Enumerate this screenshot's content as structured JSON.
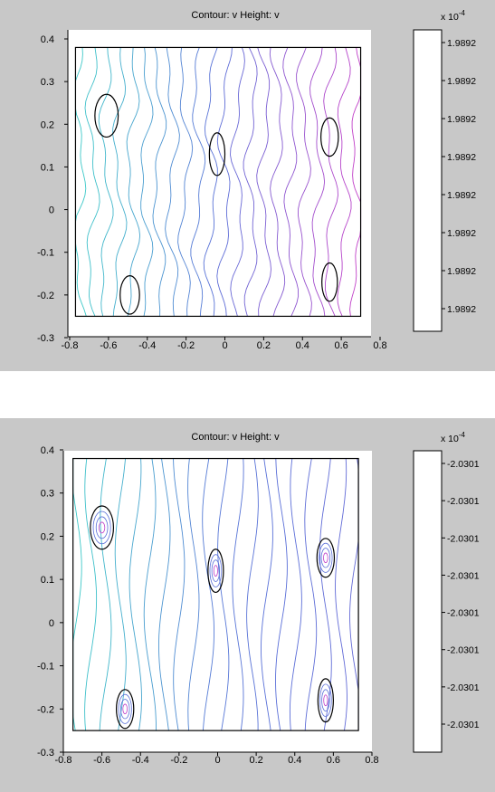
{
  "colors": {
    "figure_bg": "#c8c8c8",
    "axes_bg": "#ffffff",
    "axes_line": "#000000",
    "contour_cyan": "#3cc8c8",
    "contour_blue": "#5a6fd8",
    "contour_magenta": "#c040c8",
    "circle": "#000000"
  },
  "chart_data": [
    {
      "type": "contour",
      "title": "Contour: v  Height: v",
      "xlim": [
        -0.8,
        0.8
      ],
      "ylim": [
        -0.3,
        0.4
      ],
      "xticks": [
        "-0.8",
        "-0.6",
        "-0.4",
        "-0.2",
        "0",
        "0.2",
        "0.4",
        "0.6",
        "0.8"
      ],
      "yticks": [
        "0.4",
        "0.3",
        "0.2",
        "0.1",
        "0",
        "-0.1",
        "-0.2",
        "-0.3"
      ],
      "domain_rect": {
        "x": [
          -0.77,
          0.7
        ],
        "y": [
          -0.25,
          0.38
        ]
      },
      "circles": [
        {
          "cx": -0.61,
          "cy": 0.22,
          "rx": 0.06,
          "ry": 0.05
        },
        {
          "cx": -0.04,
          "cy": 0.13,
          "rx": 0.04,
          "ry": 0.05
        },
        {
          "cx": 0.54,
          "cy": 0.17,
          "rx": 0.045,
          "ry": 0.045
        },
        {
          "cx": -0.49,
          "cy": -0.2,
          "rx": 0.05,
          "ry": 0.045
        },
        {
          "cx": 0.54,
          "cy": -0.17,
          "rx": 0.04,
          "ry": 0.045
        }
      ],
      "colorbar": {
        "exponent": "x 10",
        "exponent_power": "-4",
        "ticks": [
          "1.9892",
          "1.9892",
          "1.9892",
          "1.9892",
          "1.9892",
          "1.9892",
          "1.9892",
          "1.9892"
        ]
      },
      "contour_style": "near-vertical wavy lines, cyan on the left shading to magenta on the right"
    },
    {
      "type": "contour",
      "title": "Contour: v  Height: v",
      "xlim": [
        -0.8,
        0.8
      ],
      "ylim": [
        -0.3,
        0.4
      ],
      "xticks": [
        "-0.8",
        "-0.6",
        "-0.4",
        "-0.2",
        "0",
        "0.2",
        "0.4",
        "0.6",
        "0.8"
      ],
      "yticks": [
        "0.4",
        "0.3",
        "0.2",
        "0.1",
        "0",
        "-0.1",
        "-0.2",
        "-0.3"
      ],
      "domain_rect": {
        "x": [
          -0.75,
          0.73
        ],
        "y": [
          -0.25,
          0.38
        ]
      },
      "circles": [
        {
          "cx": -0.6,
          "cy": 0.22,
          "rx": 0.06,
          "ry": 0.05
        },
        {
          "cx": -0.01,
          "cy": 0.12,
          "rx": 0.04,
          "ry": 0.05
        },
        {
          "cx": 0.56,
          "cy": 0.15,
          "rx": 0.045,
          "ry": 0.045
        },
        {
          "cx": -0.48,
          "cy": -0.2,
          "rx": 0.045,
          "ry": 0.045
        },
        {
          "cx": 0.56,
          "cy": -0.18,
          "rx": 0.04,
          "ry": 0.05
        }
      ],
      "colorbar": {
        "exponent": "x 10",
        "exponent_power": "-4",
        "ticks": [
          "-2.0301",
          "-2.0301",
          "-2.0301",
          "-2.0301",
          "-2.0301",
          "-2.0301",
          "-2.0301",
          "-2.0301"
        ]
      },
      "contour_style": "curved contour lines concentrating around the circular inclusions, cyan/blue with magenta cores"
    }
  ]
}
